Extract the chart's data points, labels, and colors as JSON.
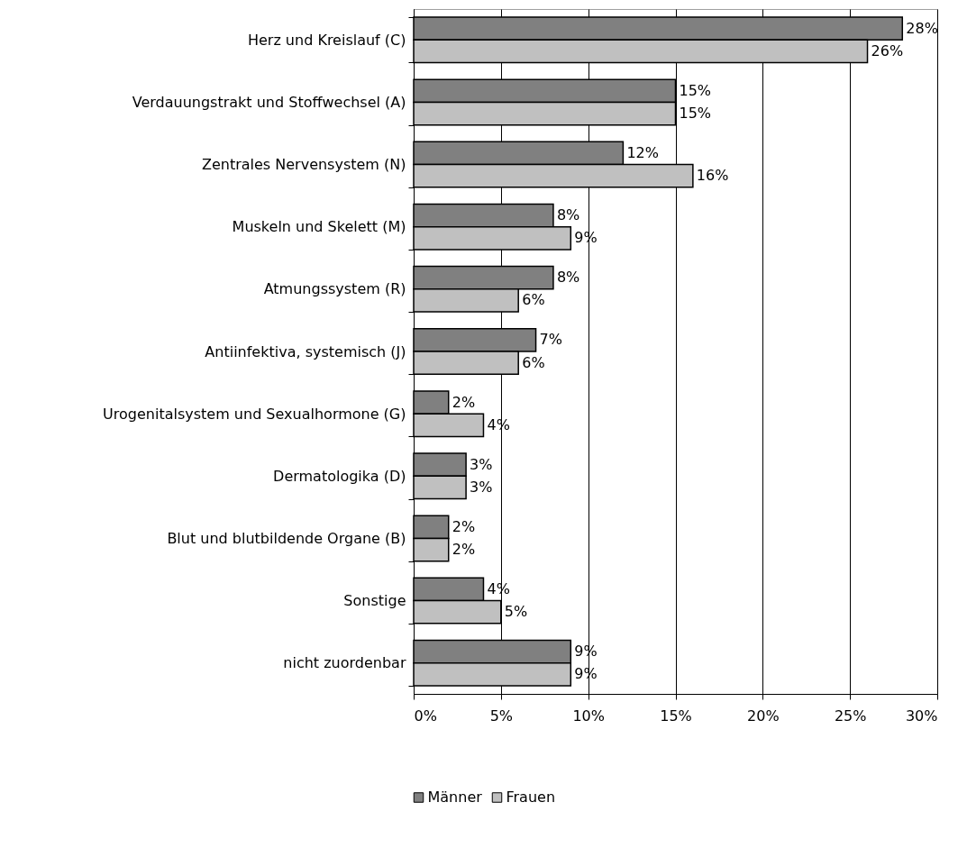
{
  "chart_data": {
    "type": "bar",
    "orientation": "horizontal",
    "categories": [
      "Herz und Kreislauf (C)",
      "Verdauungstrakt und Stoffwechsel (A)",
      "Zentrales Nervensystem (N)",
      "Muskeln und Skelett (M)",
      "Atmungssystem (R)",
      "Antiinfektiva, systemisch (J)",
      "Urogenitalsystem und Sexualhormone (G)",
      "Dermatologika (D)",
      "Blut und blutbildende Organe (B)",
      "Sonstige",
      "nicht zuordenbar"
    ],
    "series": [
      {
        "name": "Männer",
        "color": "#808080",
        "values": [
          28,
          15,
          12,
          8,
          8,
          7,
          2,
          3,
          2,
          4,
          9
        ],
        "value_labels": [
          "28%",
          "15%",
          "12%",
          "8%",
          "8%",
          "7%",
          "2%",
          "3%",
          "2%",
          "4%",
          "9%"
        ]
      },
      {
        "name": "Frauen",
        "color": "#c0c0c0",
        "values": [
          26,
          15,
          16,
          9,
          6,
          6,
          4,
          3,
          2,
          5,
          9
        ],
        "value_labels": [
          "26%",
          "15%",
          "16%",
          "9%",
          "6%",
          "6%",
          "4%",
          "3%",
          "2%",
          "5%",
          "9%"
        ]
      }
    ],
    "xlim": [
      0,
      30
    ],
    "xticks": [
      {
        "value": 0,
        "label": "0%"
      },
      {
        "value": 5,
        "label": "5%"
      },
      {
        "value": 10,
        "label": "10%"
      },
      {
        "value": 15,
        "label": "15%"
      },
      {
        "value": 20,
        "label": "20%"
      },
      {
        "value": 25,
        "label": "25%"
      },
      {
        "value": 30,
        "label": "30%"
      }
    ],
    "grid": "x",
    "legend": "bottom"
  }
}
